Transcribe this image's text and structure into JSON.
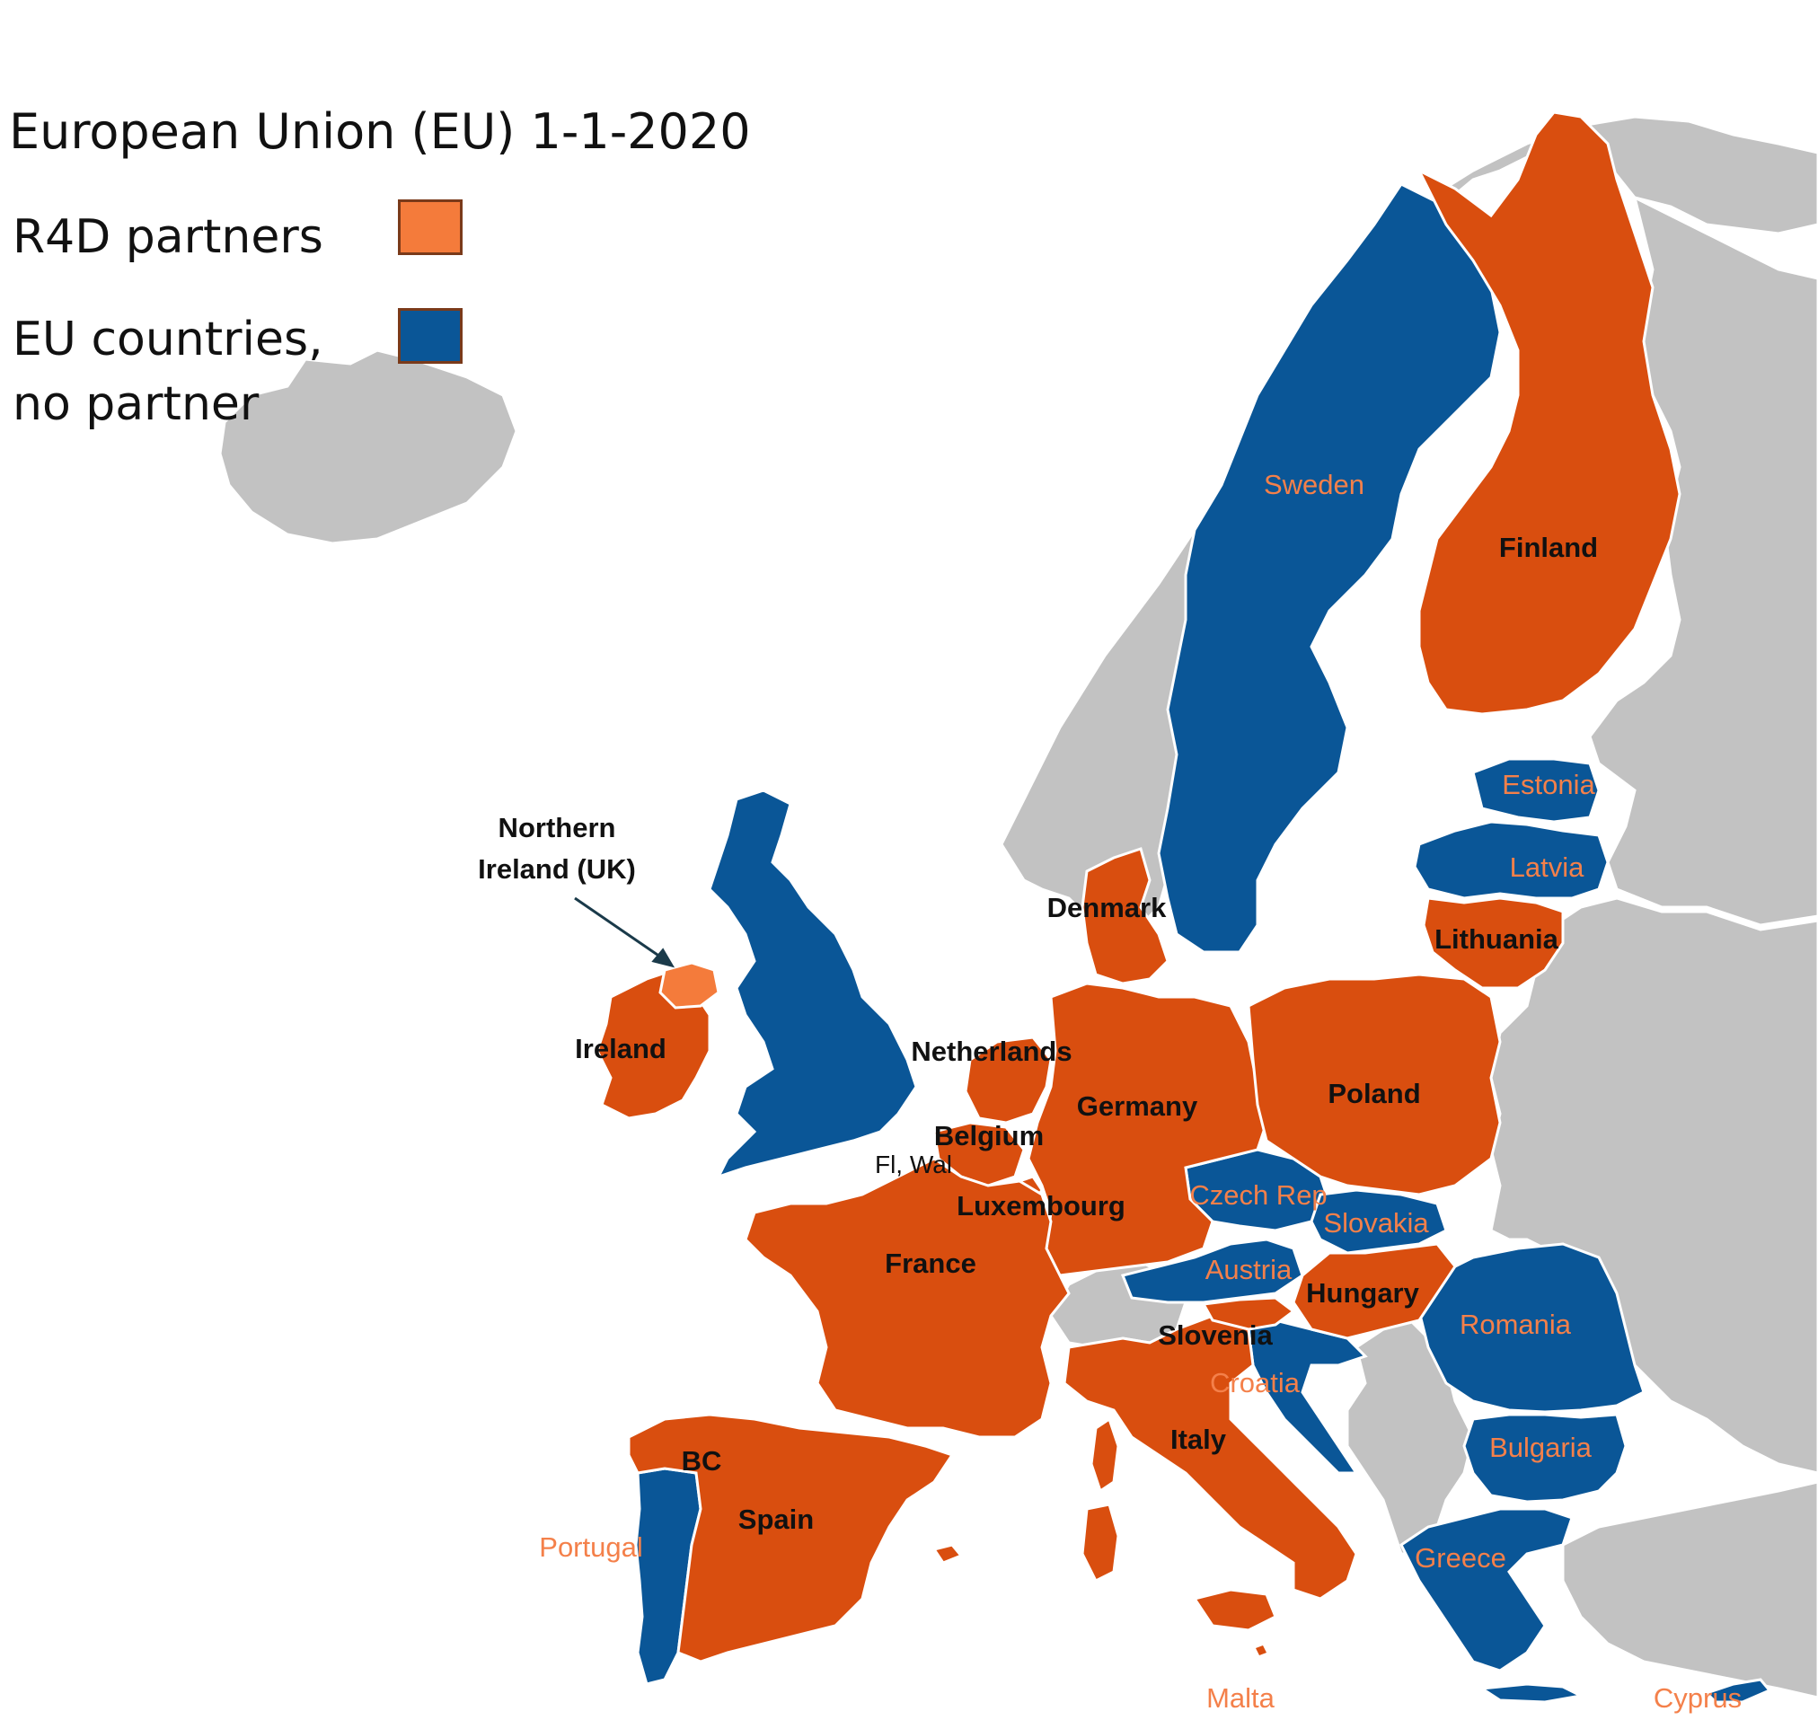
{
  "legend": {
    "title": "European Union (EU) 1-1-2020",
    "partner_label": "R4D partners",
    "nonpartner_label_line1": "EU countries,",
    "nonpartner_label_line2": "no partner"
  },
  "colors": {
    "partner": "#d94e0f",
    "partner_light": "#f47b3b",
    "nonpartner": "#0a5697",
    "non_eu": "#c2c2c2",
    "label_on_blue": "#f4804a",
    "border": "#ffffff"
  },
  "labels": {
    "sweden": "Sweden",
    "finland": "Finland",
    "estonia": "Estonia",
    "latvia": "Latvia",
    "lithuania": "Lithuania",
    "denmark": "Denmark",
    "northern_ireland_line1": "Northern",
    "northern_ireland_line2": "Ireland (UK)",
    "ireland": "Ireland",
    "netherlands": "Netherlands",
    "germany": "Germany",
    "poland": "Poland",
    "belgium": "Belgium",
    "fl_wal": "Fl, Wal",
    "luxembourg": "Luxembourg",
    "czech": "Czech Rep",
    "slovakia": "Slovakia",
    "france": "France",
    "austria": "Austria",
    "hungary": "Hungary",
    "romania": "Romania",
    "slovenia": "Slovenia",
    "croatia": "Croatia",
    "italy": "Italy",
    "bulgaria": "Bulgaria",
    "bc": "BC",
    "spain": "Spain",
    "portugal": "Portugal",
    "greece": "Greece",
    "malta": "Malta",
    "cyprus": "Cyprus"
  }
}
